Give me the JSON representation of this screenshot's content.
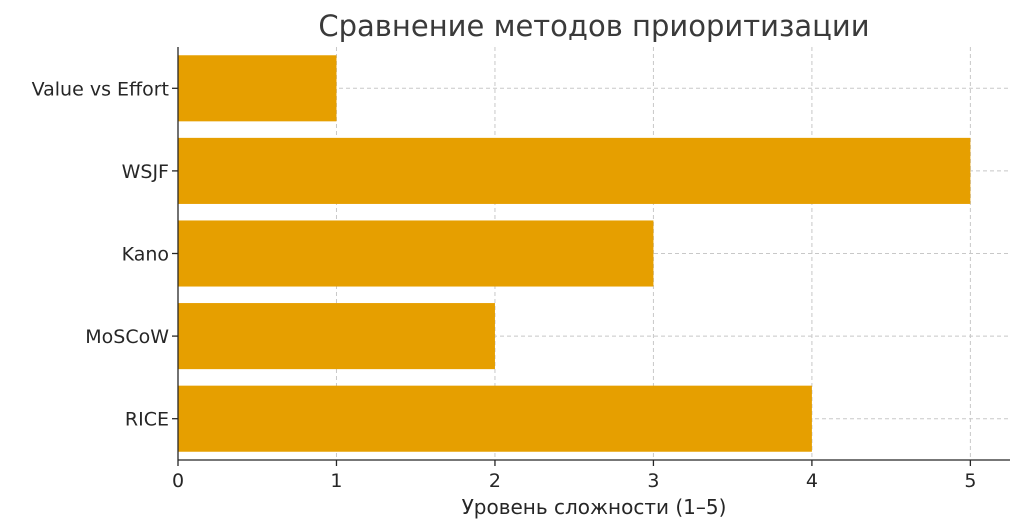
{
  "chart_data": {
    "type": "bar",
    "orientation": "horizontal",
    "title": "Сравнение методов приоритизации",
    "xlabel": "Уровень сложности (1–5)",
    "ylabel": "",
    "categories": [
      "RICE",
      "MoSCoW",
      "Kano",
      "WSJF",
      "Value vs Effort"
    ],
    "values": [
      4,
      2,
      3,
      5,
      1
    ],
    "xlim": [
      0,
      5.25
    ],
    "xticks": [
      "0",
      "1",
      "2",
      "3",
      "4",
      "5"
    ],
    "grid": true,
    "bar_color": "#E69F00"
  }
}
